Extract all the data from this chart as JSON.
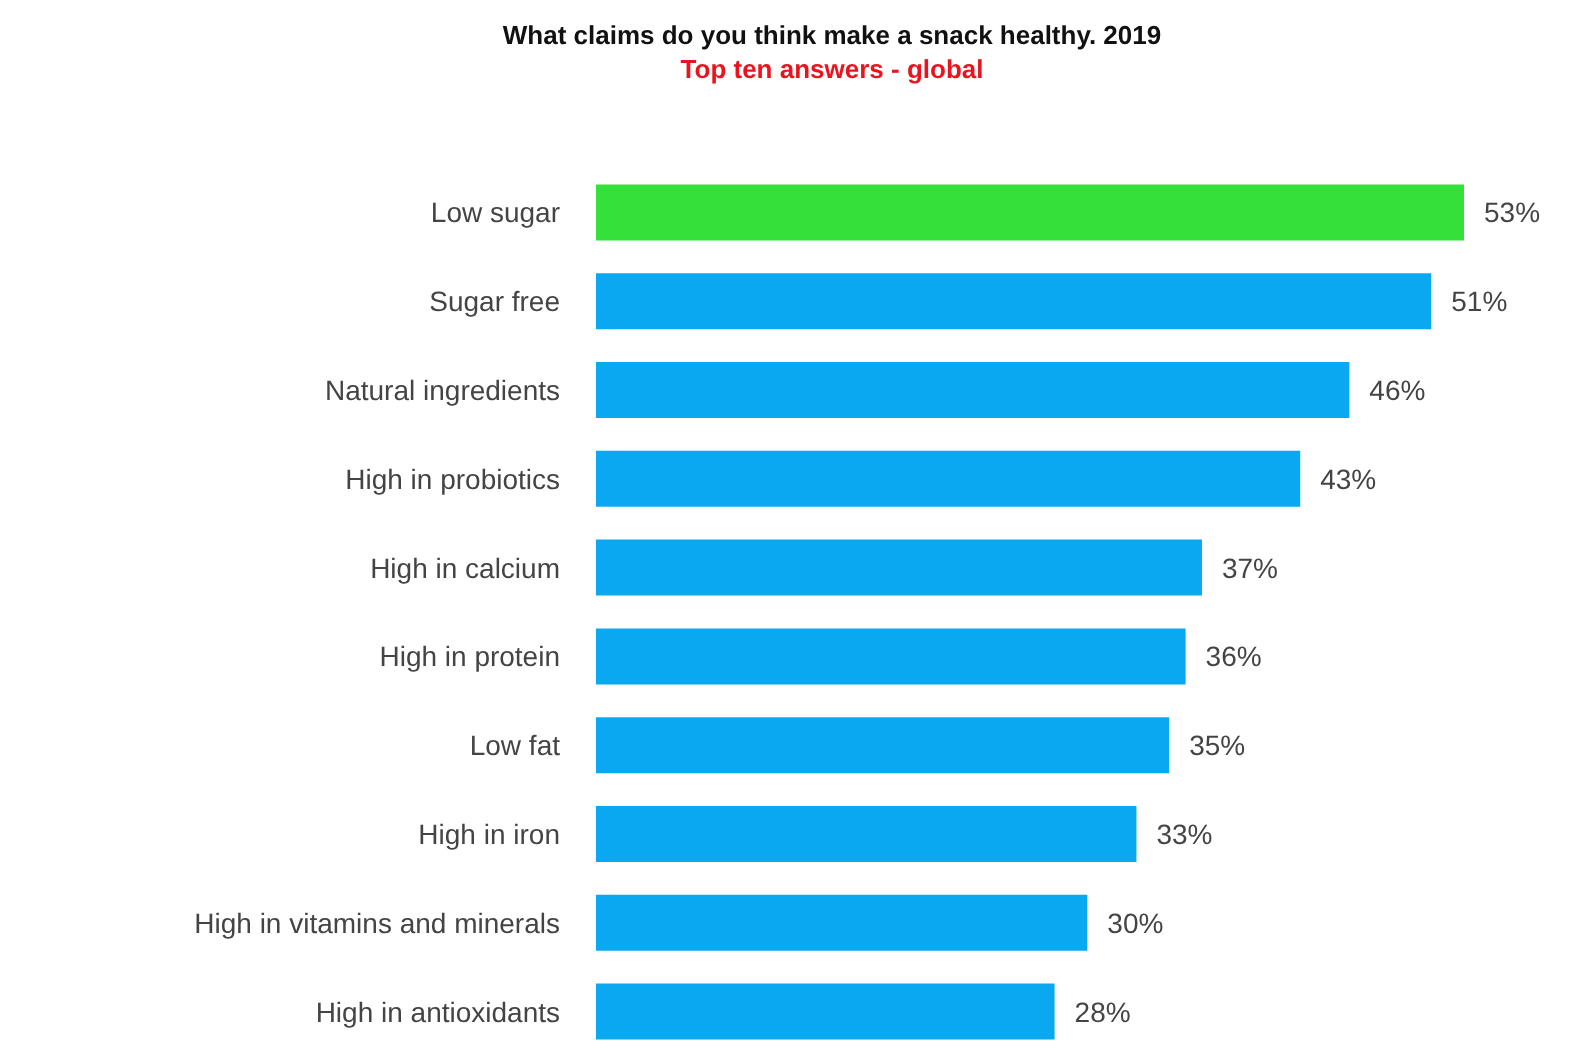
{
  "chart_data": {
    "type": "bar",
    "orientation": "horizontal",
    "title": "What claims do you think make a snack healthy. 2019",
    "subtitle": "Top ten answers - global",
    "categories": [
      "Low sugar",
      "Sugar free",
      "Natural ingredients",
      "High in probiotics",
      "High in calcium",
      "High in protein",
      "Low fat",
      "High in iron",
      "High in vitamins and minerals",
      "High in antioxidants"
    ],
    "values": [
      53,
      51,
      46,
      43,
      37,
      36,
      35,
      33,
      30,
      28
    ],
    "colors": [
      "#35e03a",
      "#0aa8f0",
      "#0aa8f0",
      "#0aa8f0",
      "#0aa8f0",
      "#0aa8f0",
      "#0aa8f0",
      "#0aa8f0",
      "#0aa8f0",
      "#0aa8f0"
    ],
    "value_labels": [
      "53%",
      "51%",
      "46%",
      "43%",
      "37%",
      "36%",
      "35%",
      "33%",
      "30%",
      "28%"
    ]
  }
}
